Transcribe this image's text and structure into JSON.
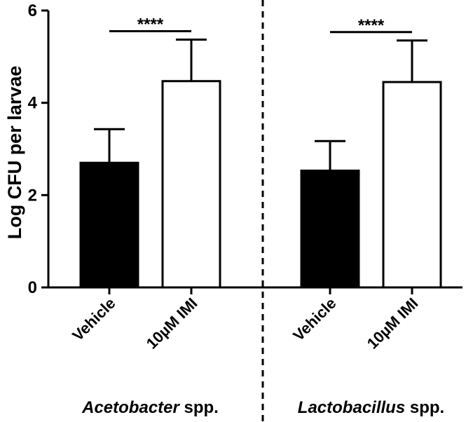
{
  "chart_data": {
    "type": "bar",
    "ylabel": "Log CFU per larvae",
    "ylim": [
      0,
      6
    ],
    "yticks": [
      "0",
      "2",
      "4",
      "6"
    ],
    "groups": [
      {
        "name_italic": "Acetobacter",
        "name_suffix": " spp.",
        "categories": [
          "Vehicle",
          "10µM IMI"
        ],
        "values": [
          2.7,
          4.47
        ],
        "errors": [
          0.73,
          0.9
        ],
        "fills": [
          "#000000",
          "#ffffff"
        ],
        "significance": "****"
      },
      {
        "name_italic": "Lactobacillus",
        "name_suffix": " spp.",
        "categories": [
          "Vehicle",
          "10µM IMI"
        ],
        "values": [
          2.53,
          4.45
        ],
        "errors": [
          0.64,
          0.9
        ],
        "fills": [
          "#000000",
          "#ffffff"
        ],
        "significance": "****"
      }
    ],
    "grid": false,
    "group_separator": "dashed"
  }
}
